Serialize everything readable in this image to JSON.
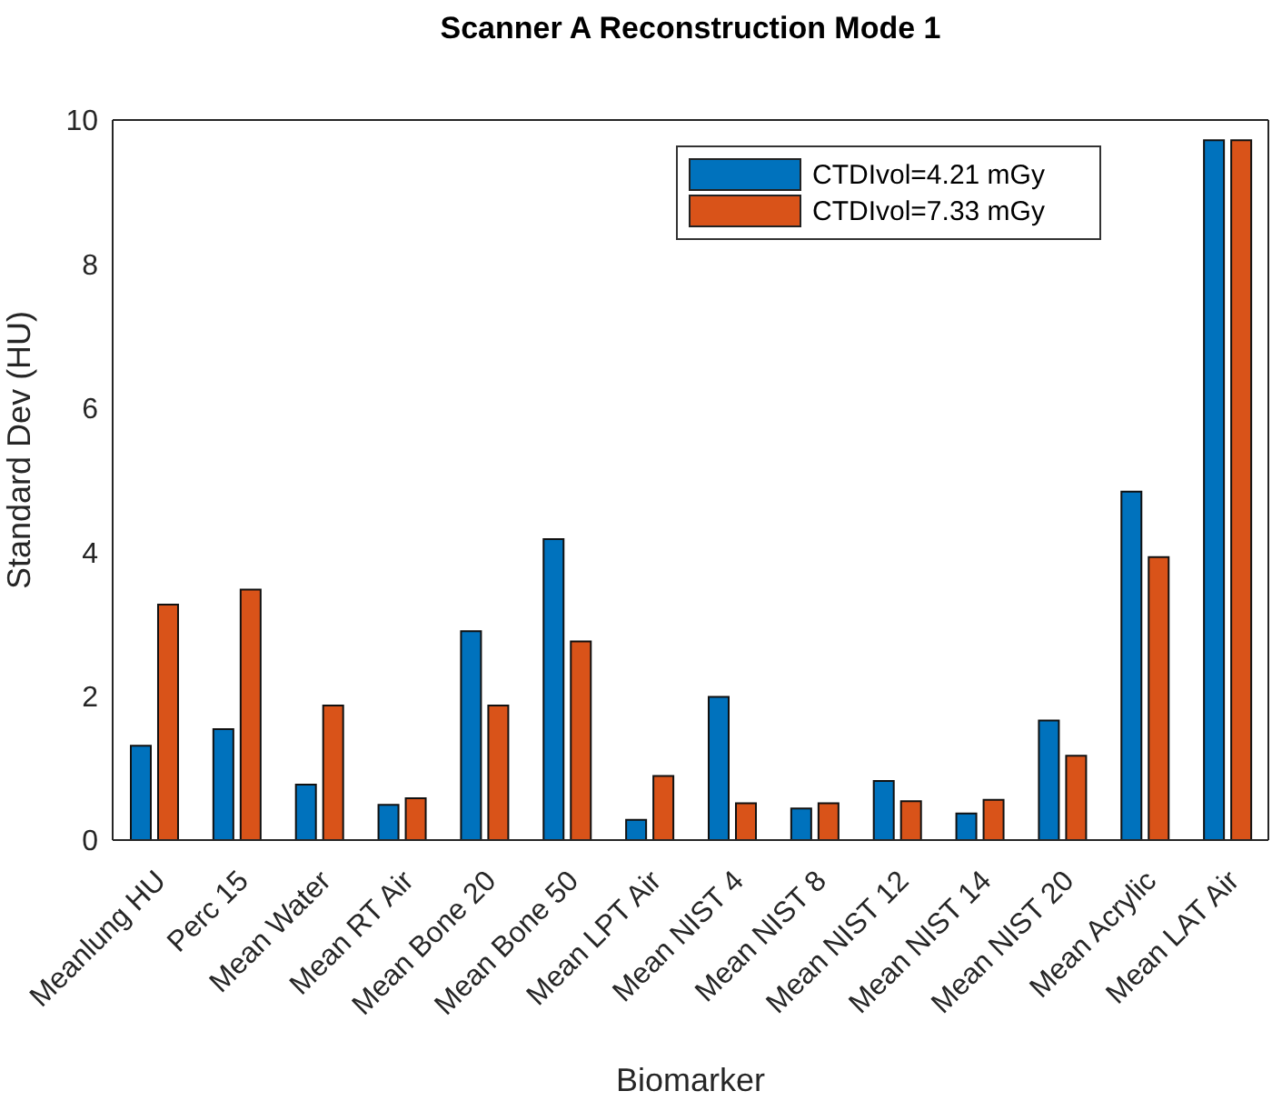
{
  "chart_data": {
    "type": "bar",
    "title": "Scanner A Reconstruction Mode 1",
    "xlabel": "Biomarker",
    "ylabel": "Standard Dev (HU)",
    "categories": [
      "Meanlung HU",
      "Perc 15",
      "Mean Water",
      "Mean RT Air",
      "Mean Bone 20",
      "Mean Bone 50",
      "Mean LPT Air",
      "Mean NIST 4",
      "Mean NIST 8",
      "Mean NIST 12",
      "Mean NIST 14",
      "Mean NIST 20",
      "Mean Acrylic",
      "Mean LAT Air"
    ],
    "series": [
      {
        "name": "CTDIvol=4.21 mGy",
        "color": "#0072bd",
        "values": [
          1.31,
          1.54,
          0.77,
          0.49,
          2.9,
          4.18,
          0.28,
          1.99,
          0.44,
          0.82,
          0.37,
          1.66,
          4.84,
          9.72
        ]
      },
      {
        "name": "CTDIvol=7.33 mGy",
        "color": "#d95319",
        "values": [
          3.27,
          3.48,
          1.87,
          0.58,
          1.87,
          2.76,
          0.89,
          0.51,
          0.51,
          0.54,
          0.56,
          1.17,
          3.93,
          9.72
        ]
      }
    ],
    "ylim": [
      0,
      10
    ],
    "yticks": [
      0,
      2,
      4,
      6,
      8,
      10
    ],
    "legend": "top right"
  }
}
